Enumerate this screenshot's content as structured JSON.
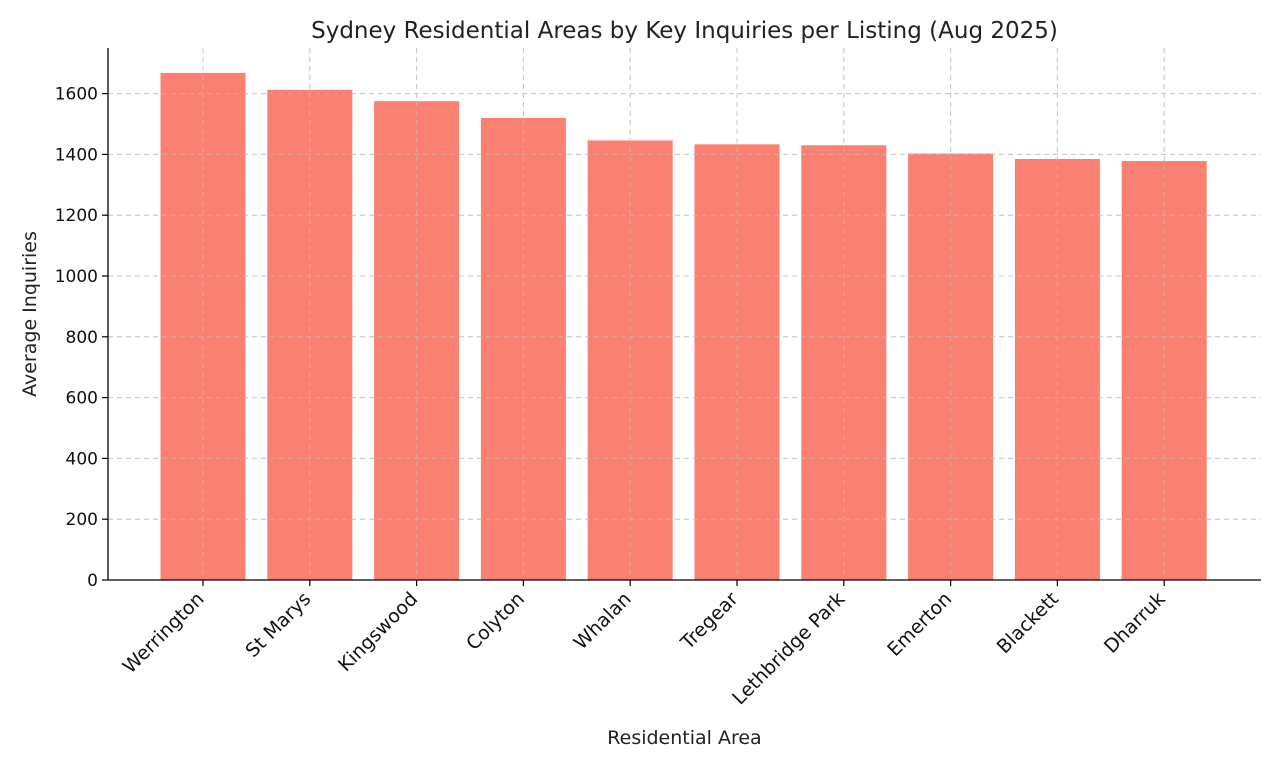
{
  "chart_data": {
    "type": "bar",
    "title": "Sydney Residential Areas by Key Inquiries per Listing (Aug 2025)",
    "xlabel": "Residential Area",
    "ylabel": "Average Inquiries",
    "categories": [
      "Werrington",
      "St Marys",
      "Kingswood",
      "Colyton",
      "Whalan",
      "Tregear",
      "Lethbridge Park",
      "Emerton",
      "Blackett",
      "Dharruk"
    ],
    "values": [
      1668,
      1612,
      1575,
      1520,
      1446,
      1433,
      1430,
      1403,
      1385,
      1378
    ],
    "ylim": [
      0,
      1750
    ],
    "yticks": [
      0,
      200,
      400,
      600,
      800,
      1000,
      1200,
      1400,
      1600
    ],
    "bar_color": "#fa8072",
    "grid": true,
    "legend": false
  }
}
